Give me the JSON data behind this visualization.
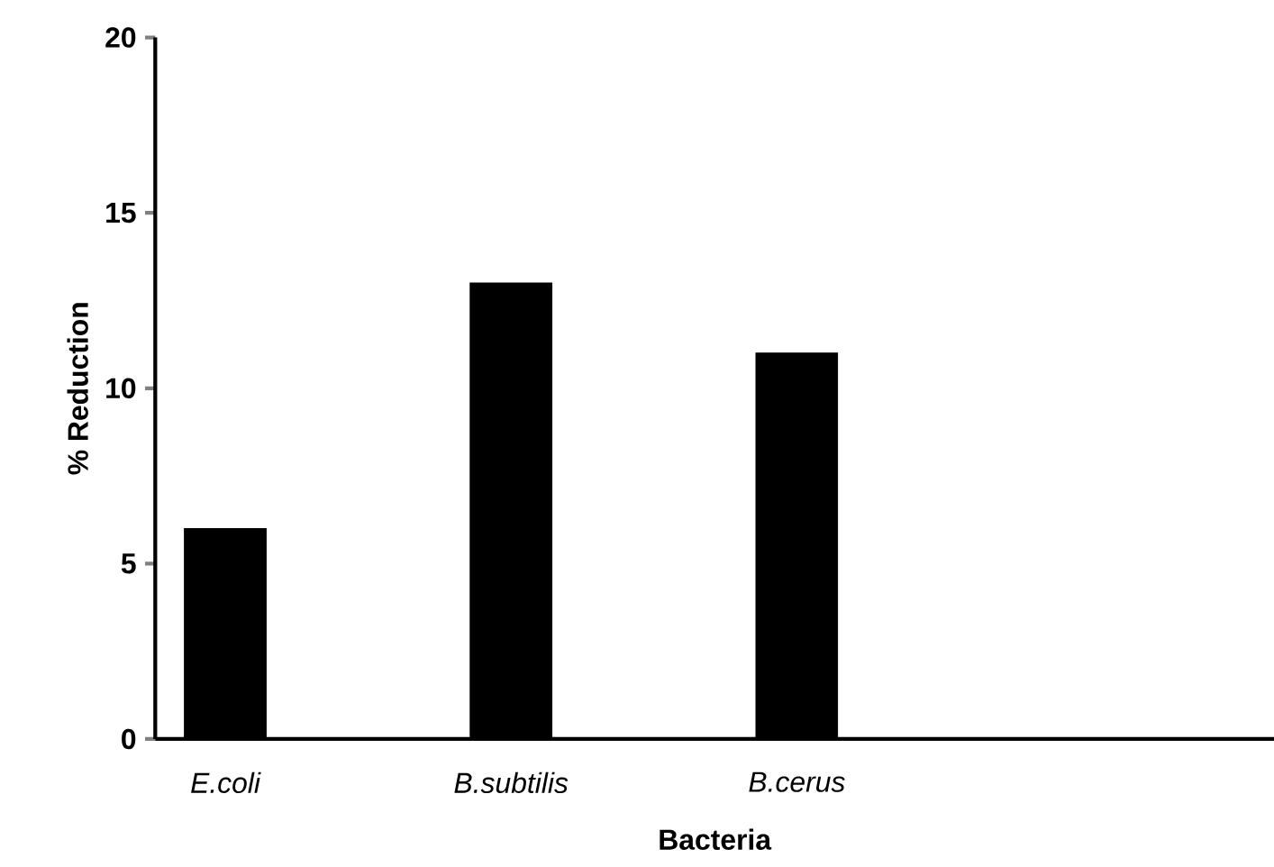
{
  "chart_data": {
    "type": "bar",
    "xlabel": "Bacteria",
    "ylabel": "% Reduction",
    "categories": [
      "E.coli",
      "B.subtilis",
      "B.cerus"
    ],
    "values": [
      6,
      13,
      11
    ],
    "color": "#000000",
    "ylim": [
      0,
      20
    ],
    "yticks": [
      0,
      5,
      10,
      15,
      20
    ],
    "grid": false
  }
}
